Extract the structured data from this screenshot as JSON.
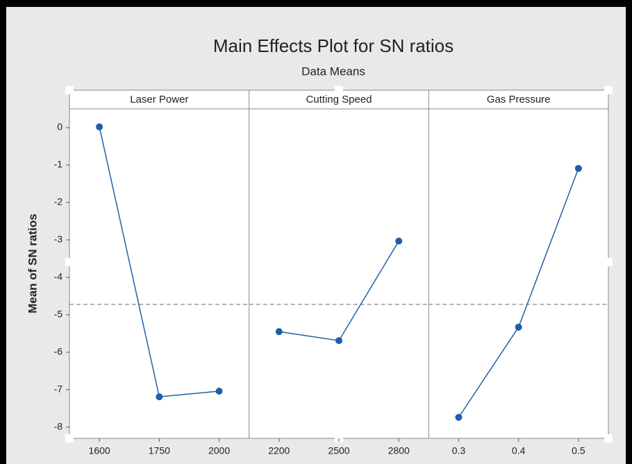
{
  "chart_data": {
    "type": "line",
    "title": "Main Effects Plot for SN ratios",
    "subtitle": "Data Means",
    "ylabel": "Mean of SN ratios",
    "ylim": [
      -8.3,
      0.5
    ],
    "yticks": [
      0,
      -1,
      -2,
      -3,
      -4,
      -5,
      -6,
      -7,
      -8
    ],
    "reference_line": -4.72,
    "color": "#1f5fa8",
    "panels": [
      {
        "name": "Laser Power",
        "categories": [
          "1600",
          "1750",
          "2000"
        ],
        "values": [
          0.02,
          -7.19,
          -7.04
        ]
      },
      {
        "name": "Cutting Speed",
        "categories": [
          "2200",
          "2500",
          "2800"
        ],
        "values": [
          -5.45,
          -5.69,
          -3.03
        ]
      },
      {
        "name": "Gas Pressure",
        "categories": [
          "0.3",
          "0.4",
          "0.5"
        ],
        "values": [
          -7.74,
          -5.33,
          -1.09
        ]
      }
    ]
  }
}
